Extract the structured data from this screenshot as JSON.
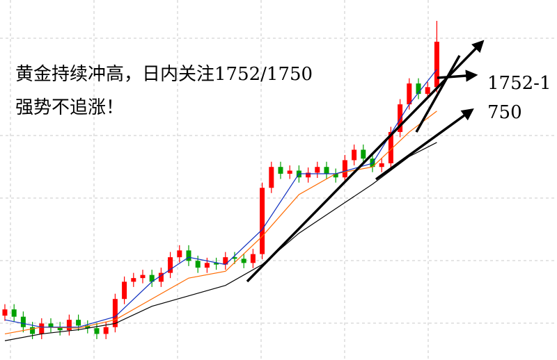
{
  "chart_data": {
    "type": "candlestick",
    "annotations": [
      "黄金持续冲高，日内关注1752/1750",
      "强势不追涨！",
      "1752-1",
      "750"
    ],
    "ylim": [
      1696,
      1765
    ],
    "up_color": "#ff0000",
    "down_color": "#00a000",
    "open": [
      1704.5,
      1705.7,
      1704.3,
      1702.3,
      1701.0,
      1703.0,
      1702.3,
      1701.7,
      1703.7,
      1702.6,
      1702.1,
      1701.0,
      1702.3,
      1707.7,
      1711.0,
      1711.7,
      1712.3,
      1711.0,
      1712.7,
      1715.7,
      1717.0,
      1715.0,
      1713.7,
      1714.6,
      1714.3,
      1715.7,
      1715.4,
      1714.6,
      1716.3,
      1729.0,
      1733.0,
      1731.7,
      1732.3,
      1731.0,
      1731.9,
      1733.0,
      1731.7,
      1731.0,
      1734.3,
      1736.3,
      1734.6,
      1733.0,
      1733.7,
      1739.7,
      1745.0,
      1749.0,
      1747.0,
      1748.3
    ],
    "high": [
      1706.7,
      1706.7,
      1705.3,
      1703.3,
      1704.0,
      1704.0,
      1703.3,
      1704.7,
      1704.7,
      1703.6,
      1703.1,
      1703.3,
      1708.7,
      1712.0,
      1712.7,
      1713.3,
      1713.3,
      1713.7,
      1716.7,
      1718.0,
      1718.0,
      1716.0,
      1715.6,
      1715.6,
      1716.7,
      1716.7,
      1716.4,
      1717.3,
      1730.0,
      1734.0,
      1734.0,
      1733.3,
      1733.3,
      1732.9,
      1734.0,
      1734.0,
      1732.7,
      1735.3,
      1737.3,
      1737.3,
      1735.6,
      1734.7,
      1740.7,
      1746.0,
      1750.0,
      1750.0,
      1749.3,
      1761.0
    ],
    "low": [
      1703.5,
      1703.3,
      1701.3,
      1700.0,
      1700.0,
      1701.3,
      1700.7,
      1700.7,
      1701.6,
      1701.1,
      1700.0,
      1700.0,
      1701.3,
      1706.7,
      1710.0,
      1710.7,
      1710.0,
      1710.0,
      1711.7,
      1714.7,
      1714.0,
      1712.7,
      1712.7,
      1713.3,
      1713.3,
      1714.4,
      1713.6,
      1713.6,
      1715.3,
      1728.0,
      1730.7,
      1730.7,
      1730.0,
      1730.0,
      1730.9,
      1730.7,
      1730.0,
      1730.0,
      1733.3,
      1733.6,
      1732.0,
      1732.0,
      1732.7,
      1738.7,
      1744.0,
      1746.0,
      1746.0,
      1747.3
    ],
    "close": [
      1705.7,
      1704.3,
      1702.3,
      1701.0,
      1703.0,
      1702.3,
      1701.7,
      1703.7,
      1702.6,
      1702.1,
      1701.0,
      1702.3,
      1707.7,
      1711.0,
      1711.7,
      1712.3,
      1711.0,
      1712.7,
      1715.7,
      1717.0,
      1715.0,
      1713.7,
      1714.6,
      1714.3,
      1715.7,
      1715.4,
      1714.6,
      1716.3,
      1729.0,
      1733.0,
      1731.7,
      1732.3,
      1731.0,
      1731.9,
      1733.0,
      1731.7,
      1731.0,
      1734.3,
      1736.3,
      1734.6,
      1733.0,
      1733.7,
      1739.7,
      1745.0,
      1749.0,
      1747.0,
      1748.3,
      1757.0
    ],
    "overlays": [
      {
        "color": "#000000",
        "x": [
          0,
          4,
          8,
          12,
          16,
          20,
          24,
          28,
          32,
          36,
          40,
          44,
          47
        ],
        "values": [
          1699.7,
          1701.0,
          1701.8,
          1703.0,
          1706.3,
          1708.3,
          1710.3,
          1714.3,
          1720.3,
          1725.0,
          1729.7,
          1735.0,
          1737.7
        ]
      },
      {
        "color": "#ff6a00",
        "x": [
          0,
          4,
          8,
          12,
          16,
          20,
          24,
          28,
          32,
          36,
          40,
          44,
          47
        ],
        "values": [
          1701.0,
          1702.3,
          1702.1,
          1703.7,
          1707.7,
          1711.7,
          1713.0,
          1719.7,
          1727.7,
          1731.7,
          1733.0,
          1739.7,
          1743.7
        ]
      },
      {
        "color": "#1030c0",
        "x": [
          0,
          4,
          8,
          12,
          16,
          20,
          24,
          28,
          32,
          36,
          40,
          44,
          47
        ],
        "values": [
          1703.7,
          1702.3,
          1702.3,
          1704.3,
          1711.0,
          1715.7,
          1714.3,
          1721.0,
          1731.7,
          1731.7,
          1733.7,
          1745.0,
          1751.7
        ]
      }
    ]
  }
}
